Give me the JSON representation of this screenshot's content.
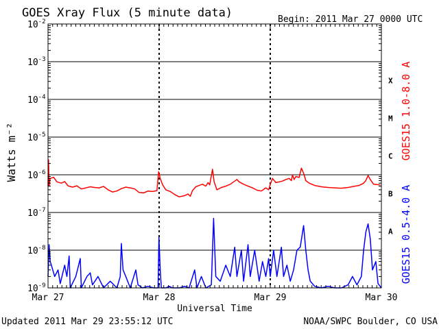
{
  "header": {
    "title": "GOES Xray Flux (5 minute data)",
    "begin": "Begin:  2011 Mar 27 0000 UTC"
  },
  "footer": {
    "updated": "Updated 2011 Mar 29 23:55:12 UTC",
    "credit": "NOAA/SWPC Boulder, CO USA"
  },
  "colors": {
    "long_channel": "#ff0000",
    "short_channel": "#0000ff",
    "axis": "#000000"
  },
  "chart_data": {
    "type": "line",
    "title": "GOES Xray Flux (5 minute data)",
    "xlabel": "Universal Time",
    "ylabel": "Watts m⁻²",
    "yscale": "log",
    "ylim": [
      1e-09,
      0.01
    ],
    "xlim": [
      0,
      3
    ],
    "x_unit": "days since 2011 Mar 27 0000 UTC",
    "x_ticks": [
      {
        "value": 0,
        "label": "Mar 27"
      },
      {
        "value": 1,
        "label": "Mar 28"
      },
      {
        "value": 2,
        "label": "Mar 29"
      },
      {
        "value": 3,
        "label": "Mar 30"
      }
    ],
    "y_ticks": [
      {
        "value": 1e-09,
        "exp": "-9"
      },
      {
        "value": 1e-08,
        "exp": "-8"
      },
      {
        "value": 1e-07,
        "exp": "-7"
      },
      {
        "value": 1e-06,
        "exp": "-6"
      },
      {
        "value": 1e-05,
        "exp": "-5"
      },
      {
        "value": 0.0001,
        "exp": "-4"
      },
      {
        "value": 0.001,
        "exp": "-3"
      },
      {
        "value": 0.01,
        "exp": "-2"
      }
    ],
    "flare_classes": [
      {
        "label": "X",
        "value": 0.000316
      },
      {
        "label": "M",
        "value": 3.16e-05
      },
      {
        "label": "C",
        "value": 3.16e-06
      },
      {
        "label": "B",
        "value": 3.16e-07
      },
      {
        "label": "A",
        "value": 3.16e-08
      }
    ],
    "grid": "horizontal lines at each decade from 1e-8 to 1e-3; dashed vertical lines at each day",
    "series": [
      {
        "name": "GOES15 1.0-8.0 A",
        "color": "#ff0000",
        "points": [
          [
            0.0,
            5e-07
          ],
          [
            0.005,
            2.5e-06
          ],
          [
            0.01,
            5e-07
          ],
          [
            0.02,
            8e-07
          ],
          [
            0.05,
            8.6e-07
          ],
          [
            0.08,
            6.5e-07
          ],
          [
            0.12,
            6e-07
          ],
          [
            0.15,
            6.6e-07
          ],
          [
            0.18,
            5.1e-07
          ],
          [
            0.22,
            4.7e-07
          ],
          [
            0.26,
            5.1e-07
          ],
          [
            0.3,
            4.2e-07
          ],
          [
            0.34,
            4.5e-07
          ],
          [
            0.38,
            4.8e-07
          ],
          [
            0.42,
            4.6e-07
          ],
          [
            0.46,
            4.5e-07
          ],
          [
            0.5,
            4.9e-07
          ],
          [
            0.54,
            4e-07
          ],
          [
            0.58,
            3.5e-07
          ],
          [
            0.62,
            3.7e-07
          ],
          [
            0.66,
            4.3e-07
          ],
          [
            0.7,
            4.7e-07
          ],
          [
            0.74,
            4.5e-07
          ],
          [
            0.78,
            4.2e-07
          ],
          [
            0.82,
            3.4e-07
          ],
          [
            0.86,
            3.3e-07
          ],
          [
            0.9,
            3.7e-07
          ],
          [
            0.94,
            3.6e-07
          ],
          [
            0.98,
            3.8e-07
          ],
          [
            0.995,
            1.2e-06
          ],
          [
            1.01,
            8e-07
          ],
          [
            1.03,
            5.5e-07
          ],
          [
            1.06,
            4e-07
          ],
          [
            1.1,
            3.6e-07
          ],
          [
            1.14,
            3e-07
          ],
          [
            1.18,
            2.6e-07
          ],
          [
            1.23,
            2.8e-07
          ],
          [
            1.26,
            3.1e-07
          ],
          [
            1.28,
            2.7e-07
          ],
          [
            1.3,
            3.8e-07
          ],
          [
            1.33,
            4.8e-07
          ],
          [
            1.36,
            5.2e-07
          ],
          [
            1.39,
            5.6e-07
          ],
          [
            1.42,
            5e-07
          ],
          [
            1.44,
            6.2e-07
          ],
          [
            1.455,
            5.4e-07
          ],
          [
            1.48,
            1.4e-06
          ],
          [
            1.495,
            6.5e-07
          ],
          [
            1.52,
            4e-07
          ],
          [
            1.56,
            4.6e-07
          ],
          [
            1.6,
            5e-07
          ],
          [
            1.64,
            5.6e-07
          ],
          [
            1.68,
            6.8e-07
          ],
          [
            1.7,
            7.5e-07
          ],
          [
            1.72,
            6.5e-07
          ],
          [
            1.76,
            5.6e-07
          ],
          [
            1.8,
            5e-07
          ],
          [
            1.84,
            4.5e-07
          ],
          [
            1.88,
            3.9e-07
          ],
          [
            1.92,
            3.7e-07
          ],
          [
            1.96,
            4.5e-07
          ],
          [
            1.985,
            4e-07
          ],
          [
            2.0,
            5.5e-07
          ],
          [
            2.02,
            8e-07
          ],
          [
            2.05,
            6.2e-07
          ],
          [
            2.08,
            6.5e-07
          ],
          [
            2.11,
            6.8e-07
          ],
          [
            2.14,
            7.5e-07
          ],
          [
            2.17,
            8e-07
          ],
          [
            2.19,
            7e-07
          ],
          [
            2.2,
            1e-06
          ],
          [
            2.215,
            7.5e-07
          ],
          [
            2.23,
            9e-07
          ],
          [
            2.26,
            8.5e-07
          ],
          [
            2.28,
            1.5e-06
          ],
          [
            2.3,
            1.1e-06
          ],
          [
            2.32,
            7e-07
          ],
          [
            2.35,
            6e-07
          ],
          [
            2.4,
            5.2e-07
          ],
          [
            2.46,
            4.8e-07
          ],
          [
            2.52,
            4.6e-07
          ],
          [
            2.58,
            4.5e-07
          ],
          [
            2.64,
            4.4e-07
          ],
          [
            2.7,
            4.6e-07
          ],
          [
            2.76,
            5e-07
          ],
          [
            2.8,
            5.2e-07
          ],
          [
            2.84,
            6e-07
          ],
          [
            2.86,
            7e-07
          ],
          [
            2.88,
            9.5e-07
          ],
          [
            2.9,
            7.5e-07
          ],
          [
            2.93,
            5.6e-07
          ],
          [
            2.96,
            5.5e-07
          ],
          [
            2.99,
            5.4e-07
          ]
        ]
      },
      {
        "name": "GOES15 0.5-4.0 A",
        "color": "#0000ff",
        "points": [
          [
            0.0,
            2e-09
          ],
          [
            0.01,
            1.4e-08
          ],
          [
            0.02,
            5e-09
          ],
          [
            0.03,
            4e-09
          ],
          [
            0.06,
            2e-09
          ],
          [
            0.09,
            3e-09
          ],
          [
            0.11,
            1.3e-09
          ],
          [
            0.15,
            4e-09
          ],
          [
            0.17,
            2e-09
          ],
          [
            0.19,
            7e-09
          ],
          [
            0.2,
            1e-09
          ],
          [
            0.25,
            2e-09
          ],
          [
            0.29,
            6e-09
          ],
          [
            0.3,
            1e-09
          ],
          [
            0.35,
            2e-09
          ],
          [
            0.38,
            2.5e-09
          ],
          [
            0.4,
            1.2e-09
          ],
          [
            0.45,
            2e-09
          ],
          [
            0.5,
            1e-09
          ],
          [
            0.56,
            1.5e-09
          ],
          [
            0.62,
            1e-09
          ],
          [
            0.65,
            2e-09
          ],
          [
            0.66,
            1.5e-08
          ],
          [
            0.675,
            3e-09
          ],
          [
            0.7,
            2e-09
          ],
          [
            0.74,
            1e-09
          ],
          [
            0.79,
            3e-09
          ],
          [
            0.81,
            1.2e-09
          ],
          [
            0.85,
            1e-09
          ],
          [
            0.9,
            1.1e-09
          ],
          [
            0.95,
            1e-09
          ],
          [
            0.99,
            1e-09
          ],
          [
            0.998,
            2.2e-08
          ],
          [
            1.01,
            3e-09
          ],
          [
            1.02,
            1e-09
          ],
          [
            1.06,
            1e-09
          ],
          [
            1.09,
            1.1e-09
          ],
          [
            1.12,
            1e-09
          ],
          [
            1.18,
            1e-09
          ],
          [
            1.23,
            1.1e-09
          ],
          [
            1.27,
            1e-09
          ],
          [
            1.32,
            3e-09
          ],
          [
            1.34,
            1e-09
          ],
          [
            1.38,
            2e-09
          ],
          [
            1.42,
            1e-09
          ],
          [
            1.47,
            1.2e-09
          ],
          [
            1.49,
            7e-08
          ],
          [
            1.51,
            2e-09
          ],
          [
            1.55,
            1.5e-09
          ],
          [
            1.6,
            4e-09
          ],
          [
            1.64,
            2e-09
          ],
          [
            1.68,
            1.2e-08
          ],
          [
            1.7,
            2e-09
          ],
          [
            1.74,
            1e-08
          ],
          [
            1.76,
            1.5e-09
          ],
          [
            1.8,
            1.4e-08
          ],
          [
            1.82,
            2e-09
          ],
          [
            1.86,
            1e-08
          ],
          [
            1.9,
            1.5e-09
          ],
          [
            1.93,
            5e-09
          ],
          [
            1.96,
            2e-09
          ],
          [
            1.985,
            6e-09
          ],
          [
            2.0,
            2e-09
          ],
          [
            2.03,
            1e-08
          ],
          [
            2.06,
            2e-09
          ],
          [
            2.1,
            1.2e-08
          ],
          [
            2.12,
            2e-09
          ],
          [
            2.15,
            4e-09
          ],
          [
            2.18,
            1.5e-09
          ],
          [
            2.21,
            3e-09
          ],
          [
            2.24,
            1e-08
          ],
          [
            2.27,
            1.2e-08
          ],
          [
            2.3,
            4.5e-08
          ],
          [
            2.32,
            1e-08
          ],
          [
            2.34,
            3e-09
          ],
          [
            2.36,
            1.5e-09
          ],
          [
            2.4,
            1.1e-09
          ],
          [
            2.46,
            1e-09
          ],
          [
            2.52,
            1.1e-09
          ],
          [
            2.58,
            1e-09
          ],
          [
            2.64,
            1e-09
          ],
          [
            2.7,
            1.2e-09
          ],
          [
            2.74,
            2e-09
          ],
          [
            2.78,
            1.2e-09
          ],
          [
            2.82,
            2e-09
          ],
          [
            2.84,
            1e-08
          ],
          [
            2.86,
            3e-08
          ],
          [
            2.88,
            5e-08
          ],
          [
            2.9,
            2e-08
          ],
          [
            2.92,
            3e-09
          ],
          [
            2.95,
            5e-09
          ],
          [
            2.97,
            1.3e-09
          ],
          [
            3.0,
            1e-09
          ]
        ]
      }
    ]
  }
}
